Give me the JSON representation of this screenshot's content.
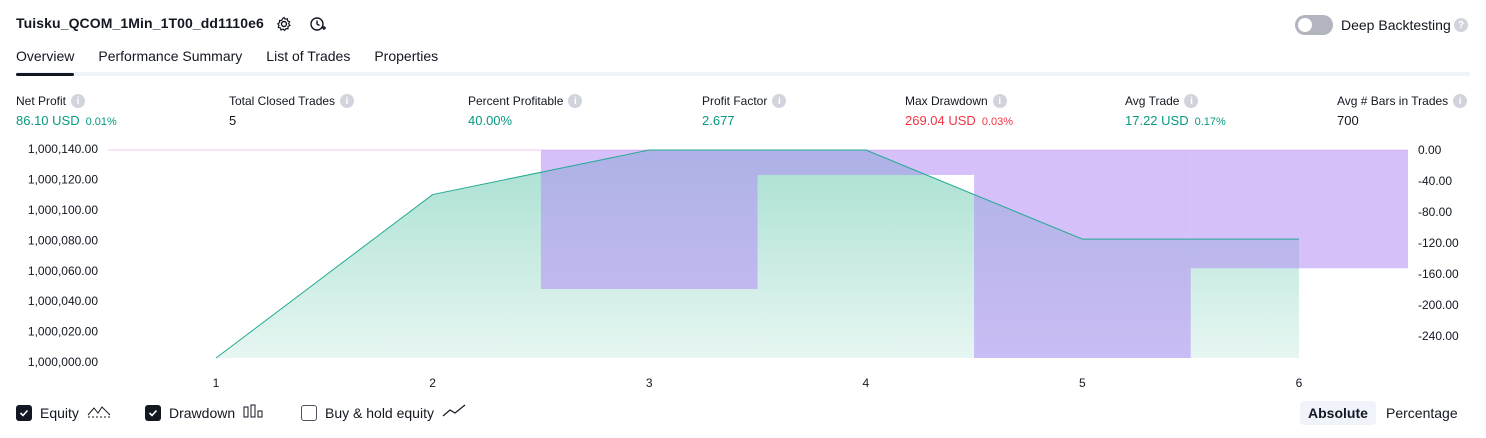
{
  "header": {
    "title": "Tuisku_QCOM_1Min_1T00_dd1110e6",
    "deep_backtesting_label": "Deep Backtesting",
    "deep_backtesting_enabled": false
  },
  "tabs": [
    {
      "label": "Overview",
      "active": true
    },
    {
      "label": "Performance Summary",
      "active": false
    },
    {
      "label": "List of Trades",
      "active": false
    },
    {
      "label": "Properties",
      "active": false
    }
  ],
  "metrics": {
    "net_profit": {
      "label": "Net Profit",
      "value": "86.10 USD",
      "pct": "0.01%"
    },
    "total_closed_trades": {
      "label": "Total Closed Trades",
      "value": "5"
    },
    "percent_profitable": {
      "label": "Percent Profitable",
      "value": "40.00%"
    },
    "profit_factor": {
      "label": "Profit Factor",
      "value": "2.677"
    },
    "max_drawdown": {
      "label": "Max Drawdown",
      "value": "269.04 USD",
      "pct": "0.03%"
    },
    "avg_trade": {
      "label": "Avg Trade",
      "value": "17.22 USD",
      "pct": "0.17%"
    },
    "avg_bars": {
      "label": "Avg # Bars in Trades",
      "value": "700"
    }
  },
  "chart_data": {
    "type": "area",
    "x": [
      1,
      2,
      3,
      4,
      5,
      6
    ],
    "series": [
      {
        "name": "Equity",
        "type": "area",
        "values": [
          1000000.0,
          1000110.0,
          1000140.0,
          1000140.0,
          1000080.0,
          1000080.0
        ]
      },
      {
        "name": "Drawdown",
        "type": "bar",
        "axis": "right",
        "x": [
          3,
          4,
          5,
          6
        ],
        "values": [
          -179.8,
          -32.3,
          -269.04,
          -153.0
        ]
      }
    ],
    "left_axis": {
      "ticks": [
        "1,000,140.00",
        "1,000,120.00",
        "1,000,100.00",
        "1,000,080.00",
        "1,000,060.00",
        "1,000,040.00",
        "1,000,020.00",
        "1,000,000.00"
      ],
      "range": [
        1000000,
        1000140
      ]
    },
    "right_axis": {
      "ticks": [
        "0.00",
        "-40.00",
        "-80.00",
        "-120.00",
        "-160.00",
        "-200.00",
        "-240.00"
      ],
      "range": [
        -269.04,
        0
      ]
    },
    "x_ticks": [
      "1",
      "2",
      "3",
      "4",
      "5",
      "6"
    ],
    "colors": {
      "equity_line": "#22ab94",
      "equity_fill_top": "#a8e0d1",
      "equity_fill_bottom": "#e7f6f2",
      "drawdown": "#b28cf5",
      "drawdown_fill": "rgba(178,140,245,0.55)"
    }
  },
  "legend": {
    "equity": {
      "label": "Equity",
      "checked": true
    },
    "drawdown": {
      "label": "Drawdown",
      "checked": true
    },
    "buy_hold": {
      "label": "Buy & hold equity",
      "checked": false
    }
  },
  "view_mode": {
    "absolute": "Absolute",
    "percentage": "Percentage",
    "active": "absolute"
  }
}
